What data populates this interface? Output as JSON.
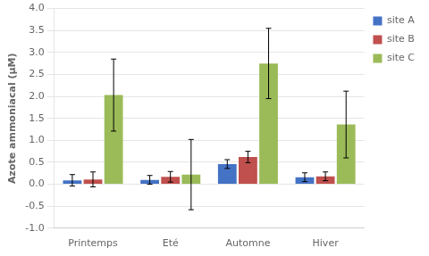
{
  "chart_data": {
    "type": "bar",
    "categories": [
      "Printemps",
      "Eté",
      "Automne",
      "Hiver"
    ],
    "series": [
      {
        "name": "site A",
        "color": "#4472c4",
        "values": [
          0.09,
          0.1,
          0.46,
          0.16
        ],
        "errors": [
          0.13,
          0.1,
          0.1,
          0.1
        ]
      },
      {
        "name": "site B",
        "color": "#c0504d",
        "values": [
          0.11,
          0.17,
          0.62,
          0.18
        ],
        "errors": [
          0.17,
          0.12,
          0.13,
          0.1
        ]
      },
      {
        "name": "site C",
        "color": "#9bbb59",
        "values": [
          2.03,
          0.22,
          2.75,
          1.36
        ],
        "errors": [
          0.82,
          0.8,
          0.8,
          0.76
        ]
      }
    ],
    "ylabel": "Azote ammoniacal (µM)",
    "ylim": [
      -1,
      4
    ],
    "yticks": [
      {
        "value": -1,
        "label": "-1.0"
      },
      -0.5,
      {
        "value": 0,
        "label": "0.0"
      },
      0.5,
      {
        "value": 1,
        "label": "1.0"
      },
      1.5,
      {
        "value": 2,
        "label": "2.0"
      },
      2.5,
      {
        "value": 3,
        "label": "3.0"
      },
      3.5,
      {
        "value": 4,
        "label": "4.0"
      }
    ],
    "grid": true,
    "legend": "right"
  }
}
